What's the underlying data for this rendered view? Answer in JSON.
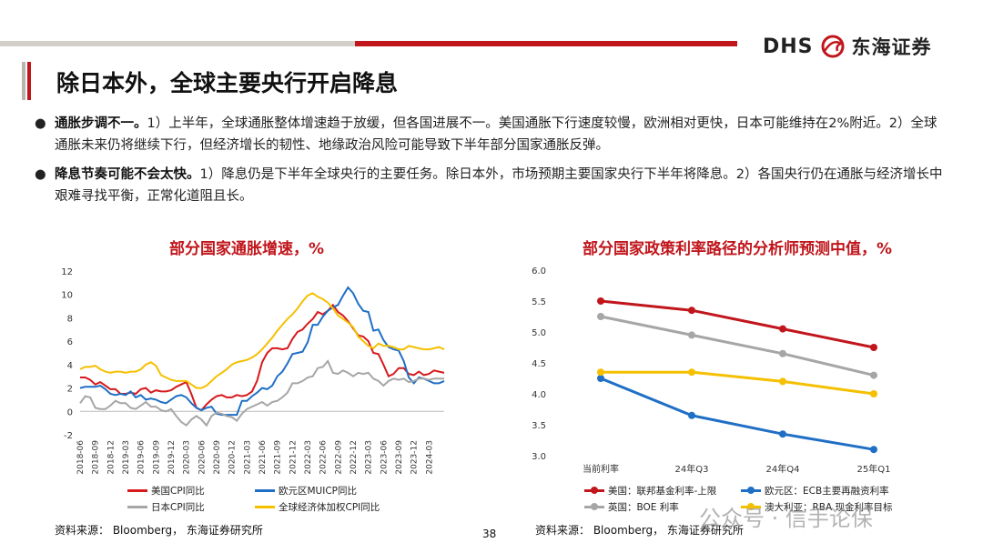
{
  "header": {
    "logo_en": "DHS",
    "logo_cn": "东海证券",
    "title": "除日本外，全球主要央行开启降息"
  },
  "bullets": [
    {
      "bold": "通胀步调不一。",
      "text": "1）上半年，全球通胀整体增速趋于放缓，但各国进展不一。美国通胀下行速度较慢，欧洲相对更快，日本可能维持在2%附近。2）全球通胀未来仍将继续下行，但经济增长的韧性、地缘政治风险可能导致下半年部分国家通胀反弹。"
    },
    {
      "bold": "降息节奏可能不会太快。",
      "text": "1）降息仍是下半年全球央行的主要任务。除日本外，市场预期主要国家央行下半年将降息。2）各国央行仍在通胀与经济增长中艰难寻找平衡，正常化道阻且长。"
    }
  ],
  "charts": {
    "left_title": "部分国家通胀增速，%",
    "right_title": "部分国家政策利率路径的分析师预测中值，%",
    "left_source": "资料来源： Bloomberg， 东海证券研究所",
    "right_source": "资料来源： Bloomberg， 东海证券研究所"
  },
  "page_number": "38",
  "watermark": "公众号 · 信手论保",
  "chart_data": [
    {
      "type": "line",
      "title": "部分国家通胀增速，%",
      "ylim": [
        -2,
        12
      ],
      "yticks": [
        -2,
        0,
        2,
        4,
        6,
        8,
        10,
        12
      ],
      "xticks": [
        "2018-06",
        "2018-09",
        "2018-12",
        "2019-03",
        "2019-06",
        "2019-09",
        "2019-12",
        "2020-03",
        "2020-06",
        "2020-09",
        "2020-12",
        "2021-03",
        "2021-06",
        "2021-09",
        "2021-12",
        "2022-03",
        "2022-06",
        "2022-09",
        "2022-12",
        "2023-03",
        "2023-06",
        "2023-09",
        "2023-12",
        "2024-03"
      ],
      "grid": false,
      "legend_position": "bottom",
      "x_start": "2018-06",
      "series": [
        {
          "name": "美国CPI同比",
          "color": "#d7191c",
          "values": [
            2.9,
            2.9,
            2.7,
            2.3,
            2.5,
            2.2,
            1.9,
            1.9,
            1.5,
            1.5,
            1.6,
            1.5,
            1.9,
            2.0,
            1.6,
            1.8,
            1.7,
            1.7,
            1.8,
            2.1,
            2.3,
            2.5,
            1.5,
            0.3,
            0.1,
            0.6,
            1.0,
            1.3,
            1.4,
            1.2,
            1.2,
            1.4,
            1.3,
            1.4,
            1.7,
            2.6,
            4.2,
            5.0,
            5.4,
            5.4,
            5.3,
            5.4,
            6.2,
            6.8,
            7.0,
            7.5,
            7.9,
            8.5,
            8.3,
            8.6,
            9.1,
            8.5,
            8.2,
            7.7,
            7.1,
            6.5,
            6.4,
            6.0,
            5.0,
            4.9,
            4.0,
            3.0,
            3.2,
            3.7,
            3.7,
            3.2,
            3.1,
            3.4,
            3.1,
            3.2,
            3.5,
            3.4,
            3.3
          ]
        },
        {
          "name": "欧元区MUICP同比",
          "color": "#1f6fc5",
          "values": [
            2.0,
            2.1,
            2.1,
            2.1,
            2.2,
            1.9,
            1.5,
            1.4,
            1.5,
            1.4,
            1.7,
            1.2,
            1.4,
            1.0,
            1.1,
            1.0,
            0.8,
            0.7,
            1.0,
            1.3,
            1.4,
            1.2,
            0.7,
            0.3,
            0.1,
            0.3,
            0.4,
            -0.2,
            -0.3,
            -0.3,
            -0.3,
            -0.3,
            0.9,
            0.9,
            1.3,
            1.6,
            2.0,
            1.9,
            2.2,
            3.0,
            3.4,
            4.1,
            4.9,
            5.0,
            5.1,
            5.9,
            7.4,
            7.4,
            8.1,
            8.6,
            8.9,
            9.1,
            9.9,
            10.6,
            10.1,
            9.2,
            8.6,
            8.5,
            6.9,
            7.0,
            6.1,
            5.5,
            5.3,
            5.2,
            4.3,
            2.9,
            2.4,
            2.9,
            2.8,
            2.6,
            2.4,
            2.4,
            2.6
          ]
        },
        {
          "name": "日本CPI同比",
          "color": "#a6a6a6",
          "values": [
            0.7,
            1.3,
            1.2,
            0.3,
            0.2,
            0.2,
            0.5,
            0.9,
            0.7,
            0.7,
            0.3,
            0.2,
            0.5,
            0.8,
            0.4,
            0.4,
            0.1,
            0.0,
            0.2,
            -0.4,
            -0.9,
            -1.2,
            -0.7,
            -0.4,
            -0.7,
            -1.2,
            -0.4,
            -0.1,
            -0.2,
            -0.4,
            -0.5,
            -0.8,
            -0.2,
            0.2,
            0.4,
            0.6,
            0.8,
            0.5,
            0.8,
            0.9,
            1.2,
            1.6,
            2.4,
            2.4,
            2.6,
            2.9,
            3.0,
            3.7,
            3.8,
            4.3,
            3.3,
            3.2,
            3.5,
            3.3,
            3.0,
            3.3,
            3.2,
            3.3,
            2.8,
            2.6,
            2.2,
            2.6,
            2.8,
            2.7,
            2.8,
            2.5,
            2.6,
            2.8,
            2.8,
            2.7,
            2.8,
            2.8,
            2.8
          ]
        },
        {
          "name": "全球经济体加权CPI同比",
          "color": "#f5c000",
          "values": [
            3.6,
            3.8,
            3.8,
            3.9,
            3.6,
            3.4,
            3.3,
            3.4,
            3.4,
            3.3,
            3.4,
            3.4,
            3.6,
            4.0,
            4.2,
            3.9,
            3.1,
            2.9,
            2.7,
            2.6,
            2.6,
            2.6,
            2.3,
            2.0,
            2.0,
            2.2,
            2.6,
            3.0,
            3.3,
            3.6,
            4.0,
            4.2,
            4.3,
            4.4,
            4.6,
            4.9,
            5.3,
            5.8,
            6.3,
            6.9,
            7.4,
            7.9,
            8.3,
            8.8,
            9.4,
            9.9,
            10.1,
            9.8,
            9.6,
            9.3,
            8.8,
            8.2,
            7.9,
            7.6,
            7.2,
            6.4,
            6.0,
            5.6,
            5.4,
            5.8,
            5.6,
            5.6,
            5.5,
            5.3,
            5.3,
            5.6,
            5.5,
            5.4,
            5.3,
            5.3,
            5.4,
            5.5,
            5.3
          ]
        }
      ]
    },
    {
      "type": "line",
      "title": "部分国家政策利率路径的分析师预测中值，%",
      "categories": [
        "当前利率",
        "24年Q3",
        "24年Q4",
        "25年Q1"
      ],
      "ylim": [
        3.0,
        6.0
      ],
      "yticks": [
        3.0,
        3.5,
        4.0,
        4.5,
        5.0,
        5.5,
        6.0
      ],
      "grid": false,
      "legend_position": "bottom",
      "series": [
        {
          "name": "美国：联邦基金利率-上限",
          "color": "#c0161c",
          "values": [
            5.5,
            5.35,
            5.05,
            4.75
          ]
        },
        {
          "name": "欧元区：ECB主要再融资利率",
          "color": "#1f6fc5",
          "values": [
            4.25,
            3.65,
            3.35,
            3.1
          ]
        },
        {
          "name": "英国：BOE 利率",
          "color": "#a6a6a6",
          "values": [
            5.25,
            4.95,
            4.65,
            4.3
          ]
        },
        {
          "name": "澳大利亚：RBA 现金利率目标",
          "color": "#f5c000",
          "values": [
            4.35,
            4.35,
            4.2,
            4.0
          ]
        }
      ]
    }
  ]
}
